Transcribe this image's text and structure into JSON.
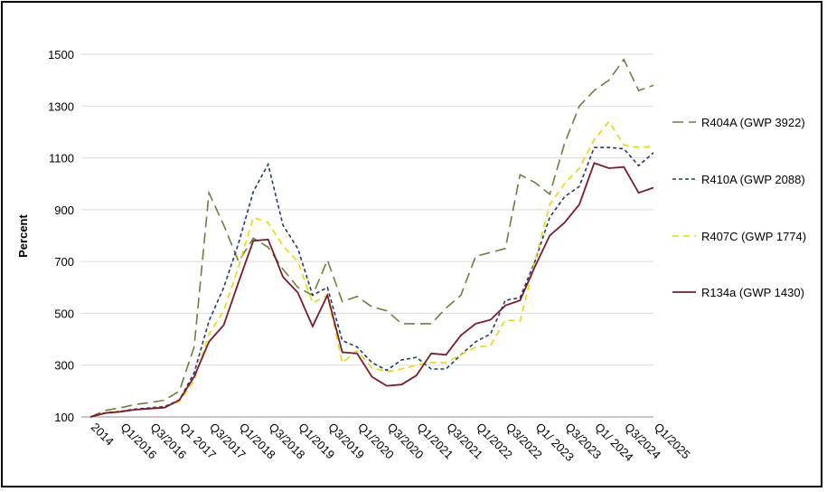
{
  "chart_data": {
    "type": "line",
    "ylabel": "Percent",
    "ylim": [
      100,
      1500
    ],
    "yticks": [
      100,
      300,
      500,
      700,
      900,
      1100,
      1300,
      1500
    ],
    "grid": "horizontal",
    "legend_position": "right",
    "x_tick_labels": [
      "2014",
      "Q1/2016",
      "Q3/2016",
      "Q1 2017",
      "Q3/2017",
      "Q1/2018",
      "Q3/2018",
      "Q1/2019",
      "Q3/2019",
      "Q1/2020",
      "Q3/2020",
      "Q1/2021",
      "Q3/2021",
      "Q1/2022",
      "Q3/2022",
      "Q1/ 2023",
      "Q3/2023",
      "Q1/ 2024",
      "Q3/2024",
      "Q1/2025"
    ],
    "series": [
      {
        "name": "R404A (GWP 3922)",
        "color": "#6b7f3a",
        "dash": "long-dash",
        "values": [
          100,
          125,
          135,
          148,
          155,
          165,
          200,
          370,
          965,
          840,
          700,
          790,
          755,
          670,
          600,
          570,
          705,
          545,
          565,
          525,
          510,
          460,
          460,
          460,
          520,
          570,
          720,
          735,
          750,
          1035,
          1005,
          960,
          1155,
          1300,
          1360,
          1400,
          1480,
          1360,
          1380
        ]
      },
      {
        "name": "R410A (GWP 2088)",
        "color": "#1f3a6e",
        "dash": "short-dash",
        "values": [
          100,
          115,
          122,
          130,
          135,
          140,
          165,
          270,
          470,
          600,
          770,
          970,
          1075,
          840,
          750,
          570,
          600,
          395,
          370,
          310,
          280,
          320,
          330,
          285,
          285,
          340,
          390,
          420,
          550,
          560,
          700,
          870,
          950,
          990,
          1140,
          1140,
          1135,
          1070,
          1120
        ]
      },
      {
        "name": "R407C (GWP 1774)",
        "color": "#e8d800",
        "dash": "dash",
        "values": [
          100,
          115,
          122,
          128,
          132,
          138,
          160,
          240,
          420,
          510,
          680,
          870,
          850,
          760,
          700,
          540,
          570,
          310,
          355,
          290,
          275,
          285,
          300,
          310,
          310,
          340,
          370,
          375,
          475,
          470,
          700,
          920,
          1000,
          1060,
          1170,
          1240,
          1150,
          1140,
          1145
        ]
      },
      {
        "name": "R134a (GWP 1430)",
        "color": "#7b1a2a",
        "dash": "solid",
        "values": [
          100,
          115,
          120,
          128,
          132,
          136,
          165,
          255,
          390,
          455,
          620,
          780,
          785,
          640,
          580,
          450,
          570,
          350,
          345,
          255,
          220,
          225,
          260,
          345,
          340,
          415,
          460,
          475,
          530,
          550,
          680,
          800,
          850,
          920,
          1080,
          1060,
          1065,
          965,
          985
        ]
      }
    ]
  }
}
